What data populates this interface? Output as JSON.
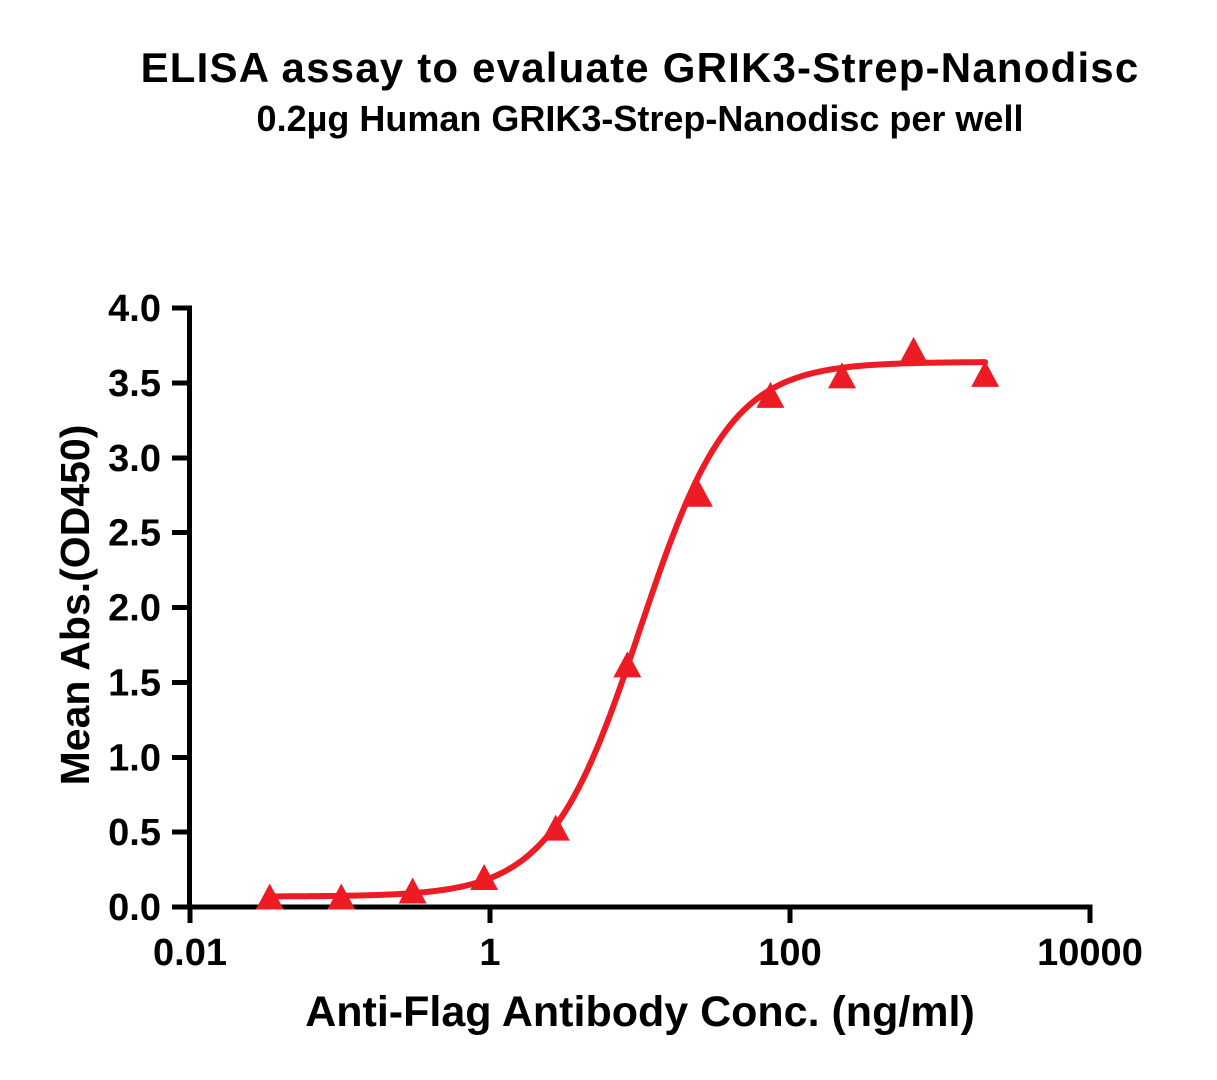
{
  "chart_data": {
    "type": "scatter",
    "title": "ELISA assay to evaluate GRIK3-Strep-Nanodisc",
    "subtitle": "0.2µg Human GRIK3-Strep-Nanodisc per well",
    "xlabel": "Anti-Flag Antibody Conc. (ng/ml)",
    "ylabel": "Mean Abs.(OD450)",
    "x_scale": "log10",
    "xlim": [
      0.01,
      10000
    ],
    "ylim": [
      0.0,
      4.0
    ],
    "x_ticks": [
      0.01,
      1,
      100,
      10000
    ],
    "x_tick_labels": [
      "0.01",
      "1",
      "100",
      "10000"
    ],
    "y_ticks": [
      0.0,
      0.5,
      1.0,
      1.5,
      2.0,
      2.5,
      3.0,
      3.5,
      4.0
    ],
    "y_tick_labels": [
      "0.0",
      "0.5",
      "1.0",
      "1.5",
      "2.0",
      "2.5",
      "3.0",
      "3.5",
      "4.0"
    ],
    "grid": false,
    "legend": false,
    "series": [
      {
        "name": "GRIK3-Strep-Nanodisc",
        "color": "#ED1C24",
        "marker": "triangle-up",
        "points": [
          {
            "x": 0.034,
            "y": 0.07
          },
          {
            "x": 0.102,
            "y": 0.07
          },
          {
            "x": 0.305,
            "y": 0.11
          },
          {
            "x": 0.914,
            "y": 0.2
          },
          {
            "x": 2.743,
            "y": 0.53
          },
          {
            "x": 8.23,
            "y": 1.62
          },
          {
            "x": 24.69,
            "y": 2.76
          },
          {
            "x": 74.07,
            "y": 3.42
          },
          {
            "x": 222.2,
            "y": 3.55
          },
          {
            "x": 666.7,
            "y": 3.72
          },
          {
            "x": 2000,
            "y": 3.56
          }
        ],
        "fit_curve": {
          "model": "4PL",
          "bottom": 0.07,
          "top": 3.64,
          "ec50": 10.0,
          "hill": 1.45,
          "x_range": [
            0.034,
            2000
          ]
        }
      }
    ],
    "colors": {
      "curve": "#ED1C24",
      "axis": "#000000",
      "text": "#000000",
      "background": "#ffffff"
    }
  }
}
